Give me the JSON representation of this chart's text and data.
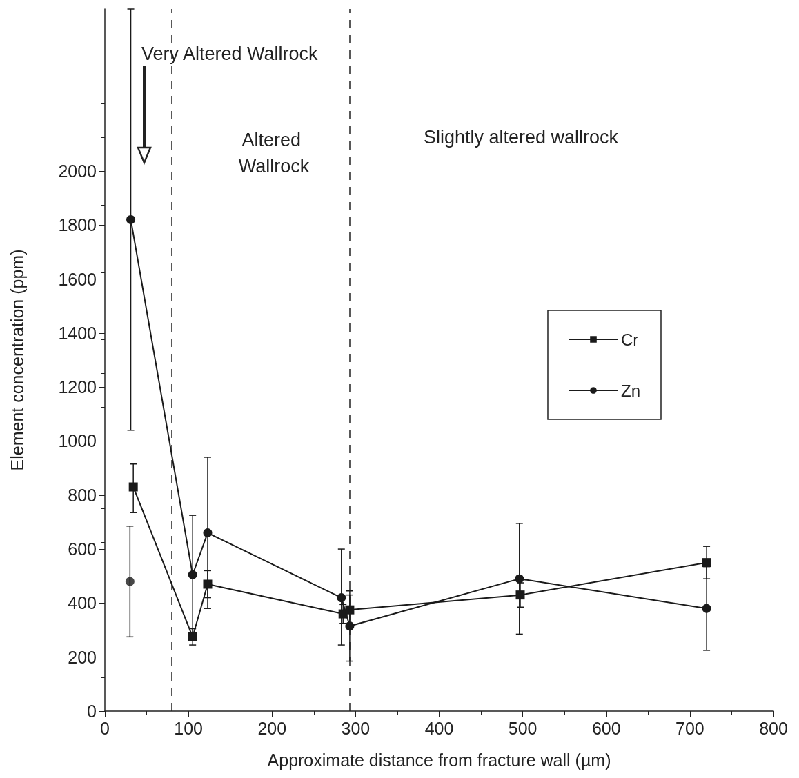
{
  "chart_data": {
    "type": "line",
    "xlabel": "Approximate distance from fracture wall (µm)",
    "ylabel": "Element concentration (ppm)",
    "xlim": [
      0,
      800
    ],
    "xticks": [
      0,
      100,
      200,
      300,
      400,
      500,
      600,
      700,
      800
    ],
    "ylim": [
      0,
      2600
    ],
    "yticks": [
      0,
      200,
      400,
      600,
      800,
      1000,
      1200,
      1400,
      1600,
      1800,
      2000
    ],
    "series": [
      {
        "name": "Cr",
        "color": "#1a1a1a",
        "marker": "square",
        "x": [
          34,
          105,
          123,
          285,
          293,
          497,
          720
        ],
        "values": [
          830,
          275,
          470,
          360,
          375,
          430,
          550
        ],
        "errors": [
          [
            735,
            915
          ],
          30,
          [
            420,
            520
          ],
          35,
          70,
          45,
          60
        ]
      },
      {
        "name": "Zn",
        "color": "#1a1a1a",
        "marker": "circle",
        "x": [
          31,
          105,
          123,
          283,
          293,
          496,
          720
        ],
        "values": [
          1820,
          505,
          660,
          420,
          315,
          490,
          380
        ],
        "errors": [
          [
            1040,
            2600
          ],
          220,
          [
            380,
            940
          ],
          [
            245,
            600
          ],
          [
            185,
            430
          ],
          [
            285,
            695
          ],
          155
        ]
      },
      {
        "type": "scatter",
        "color": "#1a1a1a",
        "marker": "circle",
        "x": [
          30
        ],
        "values": [
          480
        ],
        "errors": [
          [
            275,
            685
          ]
        ]
      }
    ],
    "ref_lines": [
      {
        "axis": "x",
        "value": 80,
        "line_style": "dashed"
      },
      {
        "axis": "x",
        "value": 293,
        "line_style": "dashed"
      }
    ],
    "annotations": [
      "Very Altered Wallrock",
      "Altered Wallrock",
      "Slightly altered wallrock"
    ],
    "legend": "right",
    "grid": false
  }
}
